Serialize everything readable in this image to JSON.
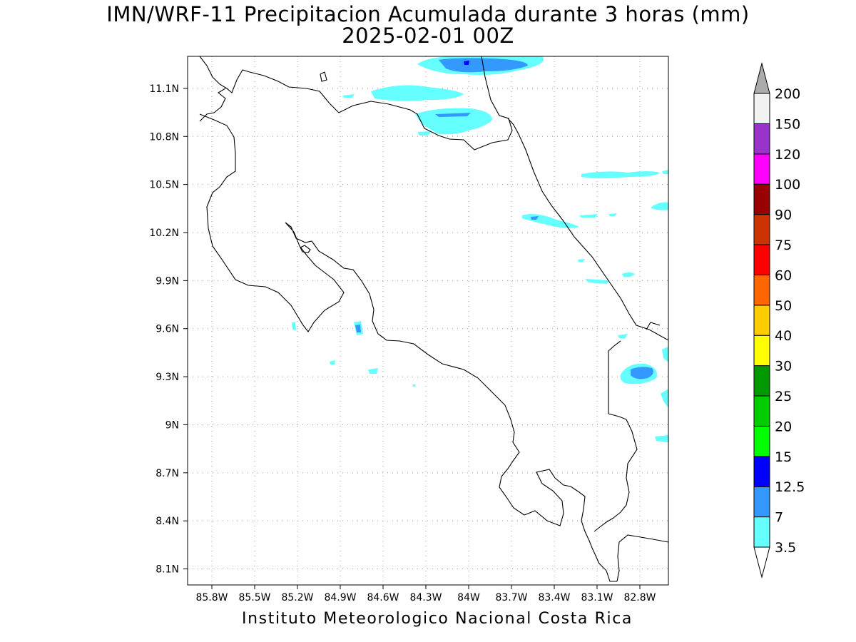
{
  "title": "IMN/WRF-11 Precipitacion Acumulada durante 3 horas (mm)",
  "subtitle": "2025-02-01 00Z",
  "footer": "Instituto Meteorologico Nacional Costa Rica",
  "map": {
    "lon_range": [
      -85.97,
      -82.6
    ],
    "lat_range": [
      8.0,
      11.3
    ],
    "lon_ticks": [
      {
        "value": -85.8,
        "label": "85.8W"
      },
      {
        "value": -85.5,
        "label": "85.5W"
      },
      {
        "value": -85.2,
        "label": "85.2W"
      },
      {
        "value": -84.9,
        "label": "84.9W"
      },
      {
        "value": -84.6,
        "label": "84.6W"
      },
      {
        "value": -84.3,
        "label": "84.3W"
      },
      {
        "value": -84.0,
        "label": "84W"
      },
      {
        "value": -83.7,
        "label": "83.7W"
      },
      {
        "value": -83.4,
        "label": "83.4W"
      },
      {
        "value": -83.1,
        "label": "83.1W"
      },
      {
        "value": -82.8,
        "label": "82.8W"
      }
    ],
    "lat_ticks": [
      {
        "value": 11.1,
        "label": "11.1N"
      },
      {
        "value": 10.8,
        "label": "10.8N"
      },
      {
        "value": 10.5,
        "label": "10.5N"
      },
      {
        "value": 10.2,
        "label": "10.2N"
      },
      {
        "value": 9.9,
        "label": "9.9N"
      },
      {
        "value": 9.6,
        "label": "9.6N"
      },
      {
        "value": 9.3,
        "label": "9.3N"
      },
      {
        "value": 9.0,
        "label": "9N"
      },
      {
        "value": 8.7,
        "label": "8.7N"
      },
      {
        "value": 8.4,
        "label": "8.4N"
      },
      {
        "value": 8.1,
        "label": "8.1N"
      }
    ],
    "grid": true
  },
  "colorbar": {
    "levels": [
      {
        "label": "3.5",
        "color": "#66ffff"
      },
      {
        "label": "7",
        "color": "#3399ff"
      },
      {
        "label": "12.5",
        "color": "#0000ff"
      },
      {
        "label": "15",
        "color": "#00ff00"
      },
      {
        "label": "20",
        "color": "#00cc00"
      },
      {
        "label": "25",
        "color": "#009900"
      },
      {
        "label": "30",
        "color": "#ffff00"
      },
      {
        "label": "40",
        "color": "#ffcc00"
      },
      {
        "label": "50",
        "color": "#ff6600"
      },
      {
        "label": "60",
        "color": "#ff0000"
      },
      {
        "label": "75",
        "color": "#cc3300"
      },
      {
        "label": "90",
        "color": "#990000"
      },
      {
        "label": "100",
        "color": "#ff00ff"
      },
      {
        "label": "120",
        "color": "#9933cc"
      },
      {
        "label": "150",
        "color": "#f2f2f2"
      },
      {
        "label": "200",
        "color": "#aaaaaa"
      }
    ],
    "bottom_triangle_color": "#ffffff",
    "top_triangle_color": "#aaaaaa"
  }
}
